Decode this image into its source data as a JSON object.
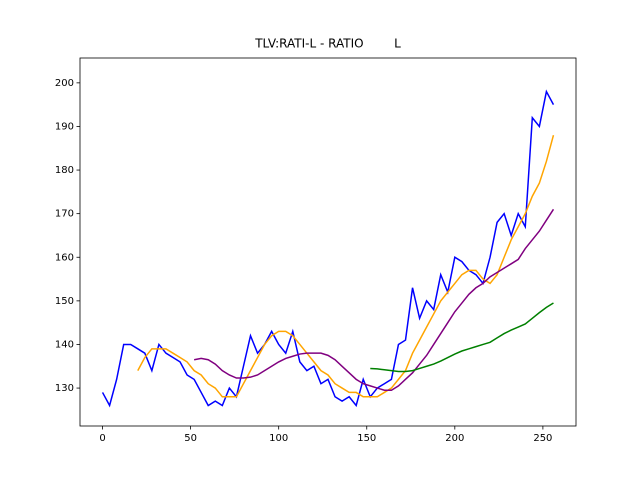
{
  "chart_data": {
    "type": "line",
    "title": "TLV:RATI-L - RATIO        L",
    "x": [
      0,
      4,
      8,
      12,
      16,
      20,
      24,
      28,
      32,
      36,
      40,
      44,
      48,
      52,
      56,
      60,
      64,
      68,
      72,
      76,
      80,
      84,
      88,
      92,
      96,
      100,
      104,
      108,
      112,
      116,
      120,
      124,
      128,
      132,
      136,
      140,
      144,
      148,
      152,
      156,
      160,
      164,
      168,
      172,
      176,
      180,
      184,
      188,
      192,
      196,
      200,
      204,
      208,
      212,
      216,
      220,
      224,
      228,
      232,
      236,
      240,
      244,
      248,
      252,
      256
    ],
    "series": [
      {
        "color": "blue",
        "values": [
          129,
          126,
          132,
          140,
          140,
          139,
          138,
          134,
          140,
          138,
          137,
          136,
          133,
          132,
          129,
          126,
          127,
          126,
          130,
          128,
          135,
          142,
          138,
          140,
          143,
          140,
          138,
          143,
          136,
          134,
          135,
          131,
          132,
          128,
          127,
          128,
          126,
          132,
          128,
          130,
          131,
          132,
          140,
          141,
          153,
          146,
          150,
          148,
          156,
          152,
          160,
          159,
          157,
          156,
          154,
          160,
          168,
          170,
          165,
          170,
          167,
          192,
          190,
          198,
          195
        ]
      },
      {
        "color": "orange",
        "values": [
          null,
          null,
          null,
          null,
          null,
          134,
          137,
          139,
          139,
          139,
          138,
          137,
          136,
          134,
          133,
          131,
          130,
          128,
          128,
          128,
          131,
          134,
          137,
          140,
          142,
          143,
          143,
          142,
          140,
          138,
          136,
          134,
          133,
          131,
          130,
          129,
          129,
          128,
          128,
          128,
          129,
          130,
          132,
          134,
          138,
          141,
          144,
          147,
          150,
          152,
          154,
          156,
          157,
          157,
          155,
          154,
          156,
          160,
          164,
          167,
          170,
          174,
          177,
          182,
          188
        ]
      },
      {
        "color": "purple",
        "values": [
          null,
          null,
          null,
          null,
          null,
          null,
          null,
          null,
          null,
          null,
          null,
          null,
          null,
          136.5,
          136.8,
          136.5,
          135.5,
          134,
          133,
          132.3,
          132.3,
          132.5,
          133,
          134,
          135,
          136,
          136.8,
          137.3,
          137.8,
          138,
          138,
          138,
          137.5,
          136.5,
          135,
          133.5,
          132,
          131,
          130.5,
          130,
          129.5,
          129.5,
          130.5,
          132,
          133.5,
          135.5,
          137.5,
          140,
          142.5,
          145,
          147.5,
          149.5,
          151.5,
          153,
          154,
          155.5,
          156.5,
          157.5,
          158.5,
          159.5,
          162,
          164,
          166,
          168.5,
          171
        ]
      },
      {
        "color": "green",
        "values": [
          null,
          null,
          null,
          null,
          null,
          null,
          null,
          null,
          null,
          null,
          null,
          null,
          null,
          null,
          null,
          null,
          null,
          null,
          null,
          null,
          null,
          null,
          null,
          null,
          null,
          null,
          null,
          null,
          null,
          null,
          null,
          null,
          null,
          null,
          null,
          null,
          null,
          null,
          134.5,
          134.4,
          134.2,
          134,
          133.8,
          133.8,
          134,
          134.5,
          135,
          135.5,
          136.2,
          137,
          137.8,
          138.5,
          139,
          139.5,
          140,
          140.5,
          141.5,
          142.5,
          143.3,
          144,
          144.7,
          146,
          147.3,
          148.5,
          149.5
        ]
      }
    ],
    "xlim": [
      -12.8,
      268.8
    ],
    "ylim": [
      121.3,
      205.7
    ],
    "xticks": [
      0,
      50,
      100,
      150,
      200,
      250
    ],
    "yticks": [
      130,
      140,
      150,
      160,
      170,
      180,
      190,
      200
    ]
  }
}
